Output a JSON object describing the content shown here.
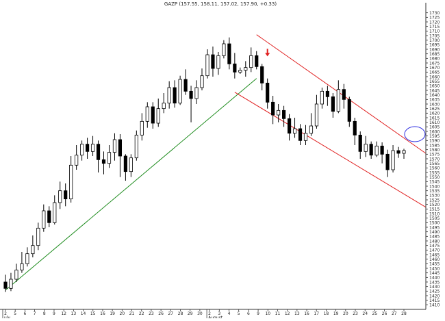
{
  "chart_data": {
    "type": "candlestick",
    "title": "GAZP (157.55, 158.11, 157.02, 157.90, +0.33)",
    "ylim": [
      140.5,
      173.5
    ],
    "y_ticks": [
      141.0,
      141.5,
      142.0,
      142.5,
      143.0,
      143.5,
      144.0,
      144.5,
      145.0,
      145.5,
      146.0,
      146.5,
      147.0,
      147.5,
      148.0,
      148.5,
      149.0,
      149.5,
      150.0,
      150.5,
      151.0,
      151.5,
      152.0,
      152.5,
      153.0,
      153.5,
      154.0,
      154.5,
      155.0,
      155.5,
      156.0,
      156.5,
      157.0,
      157.5,
      158.0,
      158.5,
      159.0,
      159.5,
      160.0,
      160.5,
      161.0,
      161.5,
      162.0,
      162.5,
      163.0,
      163.5,
      164.0,
      164.5,
      165.0,
      165.5,
      166.0,
      166.5,
      167.0,
      167.5,
      168.0,
      168.5,
      169.0,
      169.5,
      170.0,
      170.5,
      171.0,
      171.5,
      172.0,
      172.5,
      173.0
    ],
    "y_tick_labels": [
      "1410",
      "1415",
      "1420",
      "1425",
      "1430",
      "1435",
      "1440",
      "1445",
      "1450",
      "1455",
      "1460",
      "1465",
      "1470",
      "1475",
      "1480",
      "1485",
      "1490",
      "1495",
      "1500",
      "1505",
      "1510",
      "1515",
      "1520",
      "1525",
      "1530",
      "1535",
      "1540",
      "1545",
      "1550",
      "1555",
      "1560",
      "1565",
      "1570",
      "1575",
      "1580",
      "1585",
      "1590",
      "1595",
      "1600",
      "1605",
      "1610",
      "1615",
      "1620",
      "1625",
      "1630",
      "1635",
      "1640",
      "1645",
      "1650",
      "1655",
      "1660",
      "1665",
      "1670",
      "1675",
      "1680",
      "1685",
      "1690",
      "1695",
      "1700",
      "1705",
      "1710",
      "1715",
      "1720",
      "1725",
      "1730"
    ],
    "x_ticks": [
      "2",
      "5",
      "6",
      "7",
      "8",
      "9",
      "12",
      "13",
      "14",
      "15",
      "16",
      "19",
      "20",
      "21",
      "22",
      "23",
      "26",
      "27",
      "28",
      "29",
      "30",
      "2",
      "3",
      "4",
      "5",
      "6",
      "9",
      "10",
      "11",
      "12",
      "13",
      "16",
      "17",
      "18",
      "19",
      "20",
      "23",
      "24",
      "25",
      "26",
      "27",
      "28"
    ],
    "x_group_labels": [
      {
        "label": "uly",
        "at": 0
      },
      {
        "label": "August",
        "at": 21
      }
    ],
    "series": [
      {
        "values": [
          [
            143.5,
            142.8,
            144.3,
            142.4
          ],
          [
            142.8,
            143.8,
            144.5,
            142.5
          ],
          [
            143.8,
            144.8,
            145.5,
            143.5
          ],
          [
            144.8,
            145.5,
            146.8,
            144.5
          ],
          [
            145.5,
            146.6,
            147.3,
            145.2
          ],
          [
            146.6,
            147.5,
            148.6,
            146.2
          ],
          [
            147.5,
            149.4,
            150.0,
            147.0
          ],
          [
            149.4,
            151.3,
            152.0,
            149.0
          ],
          [
            151.3,
            150.0,
            151.8,
            149.5
          ],
          [
            150.0,
            152.2,
            153.0,
            149.8
          ],
          [
            152.2,
            153.5,
            154.5,
            151.5
          ],
          [
            153.5,
            152.6,
            154.3,
            151.8
          ],
          [
            152.6,
            156.3,
            157.3,
            152.2
          ],
          [
            156.3,
            157.4,
            158.5,
            155.8
          ],
          [
            157.4,
            158.6,
            159.0,
            156.8
          ],
          [
            158.6,
            157.8,
            159.3,
            157.0
          ],
          [
            157.8,
            158.6,
            159.5,
            157.3
          ],
          [
            158.6,
            156.9,
            159.0,
            155.5
          ],
          [
            156.9,
            156.5,
            157.8,
            155.3
          ],
          [
            156.5,
            157.7,
            158.5,
            156.0
          ],
          [
            157.7,
            159.1,
            159.8,
            156.8
          ],
          [
            159.1,
            157.3,
            159.7,
            155.0
          ],
          [
            157.3,
            155.6,
            157.5,
            154.6
          ],
          [
            155.6,
            157.1,
            157.5,
            155.0
          ],
          [
            157.1,
            159.6,
            160.1,
            156.8
          ],
          [
            159.6,
            161.1,
            162.0,
            159.0
          ],
          [
            161.1,
            162.7,
            163.2,
            160.4
          ],
          [
            162.7,
            160.9,
            163.2,
            160.3
          ],
          [
            160.9,
            162.5,
            163.6,
            160.5
          ],
          [
            162.5,
            163.1,
            164.2,
            162.0
          ],
          [
            163.1,
            164.8,
            165.5,
            162.5
          ],
          [
            164.8,
            163.1,
            165.6,
            162.6
          ],
          [
            163.1,
            165.7,
            166.1,
            162.9
          ],
          [
            165.7,
            164.4,
            166.8,
            164.0
          ],
          [
            164.4,
            163.6,
            165.0,
            161.0
          ],
          [
            163.6,
            164.8,
            165.6,
            163.0
          ],
          [
            164.8,
            166.1,
            166.9,
            164.5
          ],
          [
            166.1,
            168.4,
            169.0,
            165.8
          ],
          [
            168.4,
            166.9,
            169.3,
            166.0
          ],
          [
            166.9,
            168.3,
            168.7,
            166.2
          ],
          [
            168.3,
            169.6,
            170.0,
            168.0
          ],
          [
            169.6,
            167.4,
            170.3,
            166.8
          ],
          [
            167.4,
            166.5,
            168.6,
            165.8
          ],
          [
            166.5,
            166.7,
            167.0,
            166.3
          ],
          [
            166.7,
            167.0,
            167.7,
            166.0
          ],
          [
            167.0,
            168.3,
            169.2,
            166.5
          ],
          [
            168.3,
            167.1,
            168.8,
            166.8
          ],
          [
            167.1,
            165.3,
            167.4,
            164.5
          ],
          [
            165.3,
            163.2,
            165.8,
            162.5
          ],
          [
            163.2,
            161.8,
            163.9,
            160.8
          ],
          [
            161.8,
            162.3,
            163.0,
            161.0
          ],
          [
            162.3,
            161.4,
            162.8,
            160.5
          ],
          [
            161.4,
            159.8,
            161.9,
            159.0
          ],
          [
            159.8,
            160.3,
            161.5,
            159.3
          ],
          [
            160.3,
            159.0,
            160.8,
            158.5
          ],
          [
            159.0,
            159.8,
            160.7,
            158.5
          ],
          [
            159.8,
            160.6,
            162.0,
            159.5
          ],
          [
            160.6,
            163.0,
            164.0,
            160.3
          ],
          [
            163.0,
            164.4,
            164.8,
            162.5
          ],
          [
            164.4,
            163.8,
            165.0,
            162.8
          ],
          [
            163.8,
            162.2,
            164.2,
            161.5
          ],
          [
            162.2,
            164.6,
            165.6,
            162.0
          ],
          [
            164.6,
            163.5,
            165.2,
            162.5
          ],
          [
            163.5,
            161.1,
            163.8,
            160.5
          ],
          [
            161.1,
            159.6,
            161.5,
            158.5
          ],
          [
            159.6,
            157.8,
            160.0,
            157.0
          ],
          [
            157.8,
            158.6,
            159.5,
            157.2
          ],
          [
            158.6,
            157.4,
            158.9,
            157.0
          ],
          [
            157.4,
            158.4,
            158.9,
            157.2
          ],
          [
            158.4,
            157.5,
            158.8,
            156.5
          ],
          [
            157.5,
            155.8,
            158.0,
            155.0
          ],
          [
            155.8,
            157.9,
            158.5,
            155.5
          ],
          [
            157.9,
            157.6,
            158.3,
            157.1
          ],
          [
            157.6,
            157.9,
            158.1,
            157.0
          ]
        ]
      }
    ],
    "lines": [
      {
        "color": "#1e8c1e",
        "from": [
          0,
          142.6
        ],
        "to": [
          46,
          165.8
        ]
      },
      {
        "color": "#e02020",
        "from": [
          46,
          170.6
        ],
        "to": [
          77,
          157.6
        ]
      },
      {
        "color": "#e02020",
        "from": [
          42,
          164.3
        ],
        "to": [
          77,
          151.7
        ]
      }
    ],
    "annotations": [
      {
        "type": "down-arrow",
        "color": "#e02020",
        "x": 48,
        "y": 168.6
      },
      {
        "type": "ellipse",
        "color": "#2a2ae0",
        "x": 75,
        "y": 159.7
      }
    ]
  }
}
